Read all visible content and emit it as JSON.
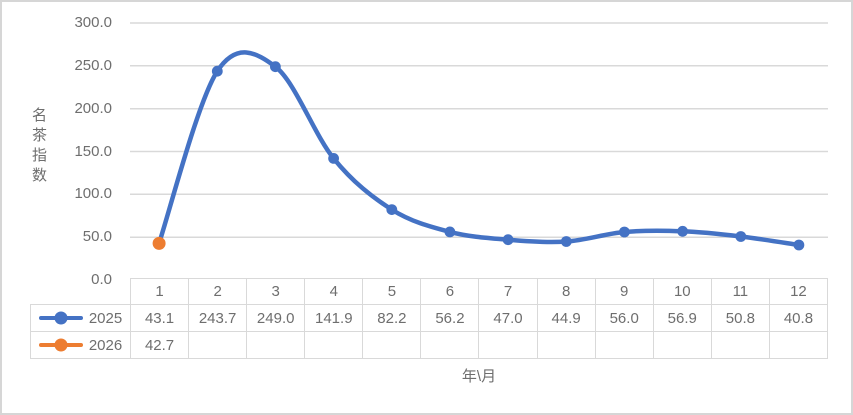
{
  "chart_data": {
    "type": "line",
    "title": "",
    "ylabel": "名茶指数",
    "xlabel": "年\\月",
    "categories": [
      "1",
      "2",
      "3",
      "4",
      "5",
      "6",
      "7",
      "8",
      "9",
      "10",
      "11",
      "12"
    ],
    "series": [
      {
        "name": "2025",
        "color": "#4472C4",
        "values": [
          43.1,
          243.7,
          249.0,
          141.9,
          82.2,
          56.2,
          47.0,
          44.9,
          56.0,
          56.9,
          50.8,
          40.8
        ]
      },
      {
        "name": "2026",
        "color": "#ED7D31",
        "values": [
          42.7,
          null,
          null,
          null,
          null,
          null,
          null,
          null,
          null,
          null,
          null,
          null
        ]
      }
    ],
    "ylim": [
      0,
      300
    ],
    "ytick_interval": 50,
    "ytick_labels": [
      "0.0",
      "50.0",
      "100.0",
      "150.0",
      "200.0",
      "250.0",
      "300.0"
    ],
    "grid": true,
    "smoothed": true,
    "legend_position": "data-table-left",
    "value_decimals": 1
  },
  "colors": {
    "series_2025": "#4472C4",
    "series_2026": "#ED7D31",
    "gridline": "#D9D9D9",
    "table_border": "#D9D9D9",
    "label_text": "#6E6E6E",
    "frame_border": "#D6D6D6",
    "background": "#FFFFFF"
  }
}
